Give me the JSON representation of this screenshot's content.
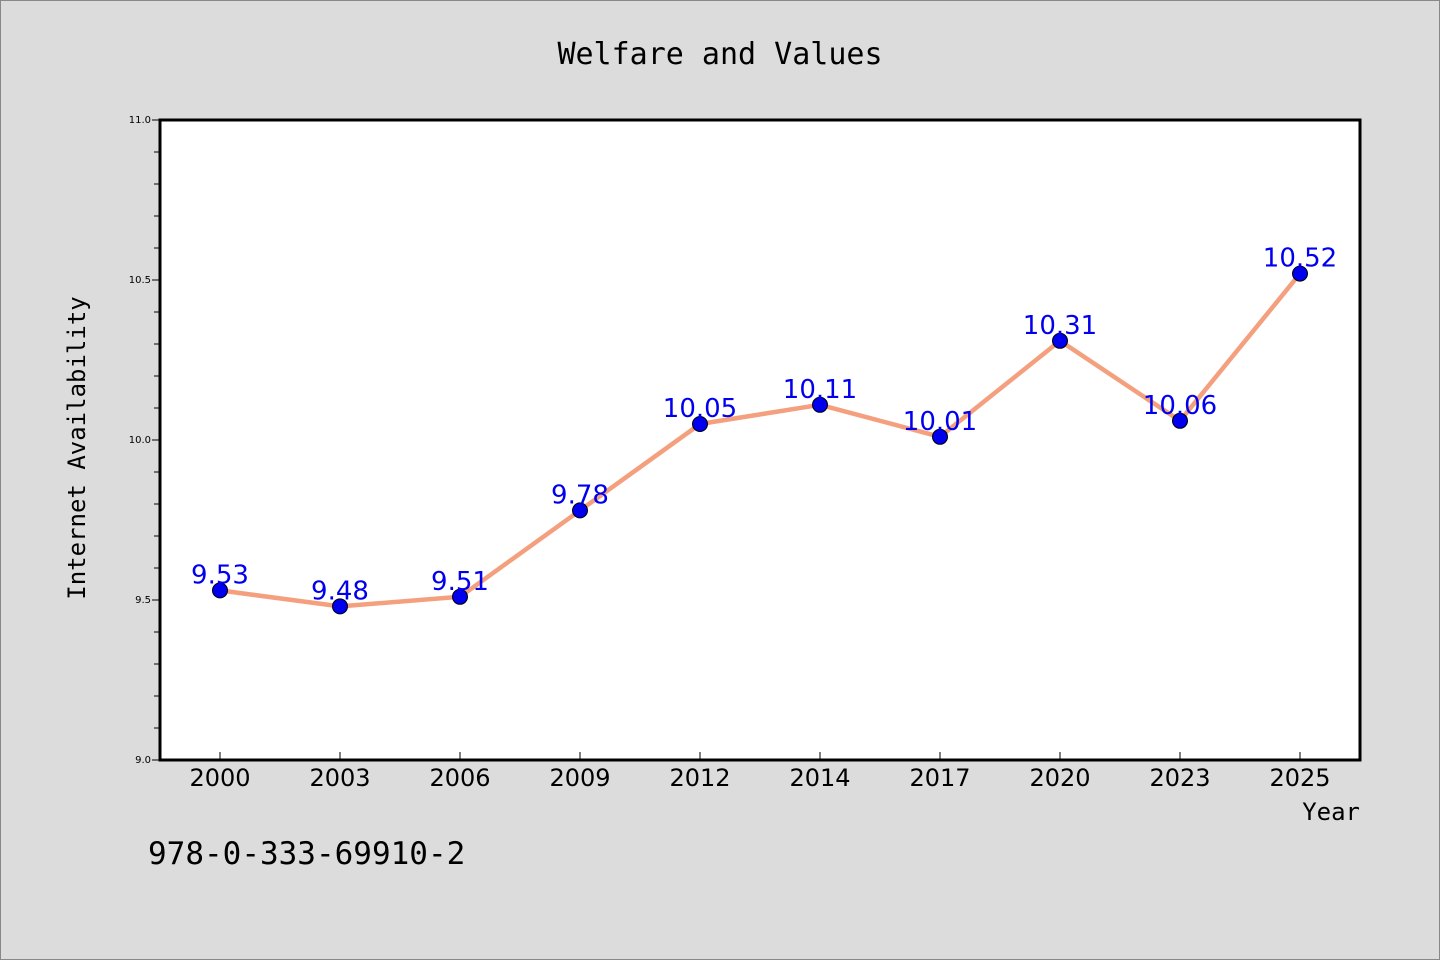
{
  "chart_data": {
    "type": "line",
    "title": "Welfare and Values",
    "xlabel": "Year",
    "ylabel": "Internet Availability",
    "categories": [
      "2000",
      "2003",
      "2006",
      "2009",
      "2012",
      "2014",
      "2017",
      "2020",
      "2023",
      "2025"
    ],
    "series": [
      {
        "values": [
          9.53,
          9.48,
          9.51,
          9.78,
          10.05,
          10.11,
          10.01,
          10.31,
          10.06,
          10.52
        ],
        "line_color": "#f4a07e",
        "marker_color": "#0000ee"
      }
    ],
    "data_labels": [
      "9.53",
      "9.48",
      "9.51",
      "9.78",
      "10.05",
      "10.11",
      "10.01",
      "10.31",
      "10.06",
      "10.52"
    ],
    "data_label_color": "#0000ee",
    "ylim": [
      9.0,
      11.0
    ],
    "yticks": [
      "9.0",
      "9.5",
      "10.0",
      "10.5",
      "11.0"
    ],
    "grid": false,
    "background": "#dcdcdc",
    "plot_background": "#ffffff"
  },
  "footer": {
    "isbn": "978-0-333-69910-2"
  }
}
